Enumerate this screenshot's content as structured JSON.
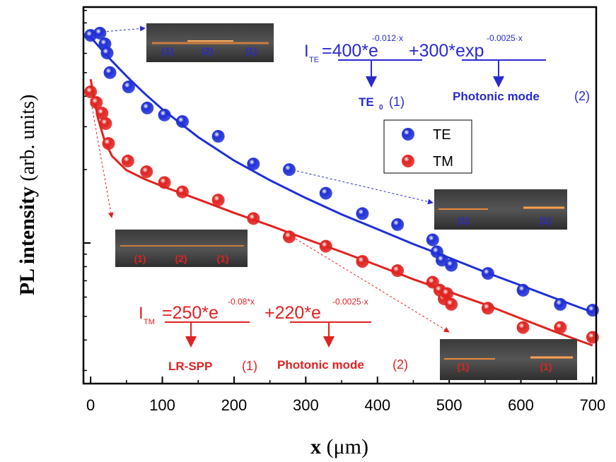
{
  "chart_data": {
    "type": "scatter",
    "xlabel": {
      "main": "x",
      "unit": "(μm)"
    },
    "ylabel": {
      "main": "PL intensity",
      "unit": "(arb. units)"
    },
    "xlim": [
      -10,
      705
    ],
    "xticks": [
      0,
      100,
      200,
      300,
      400,
      500,
      600,
      700
    ],
    "xminor_ticks": [
      50,
      150,
      250,
      350,
      450,
      550,
      650
    ],
    "yscale": "log",
    "ylim": [
      26.5,
      929
    ],
    "yticks": [
      100
    ],
    "yminor_ticks": [
      30,
      40,
      50,
      60,
      70,
      80,
      90,
      200,
      300,
      400,
      500,
      600,
      700,
      800,
      900
    ],
    "series": [
      {
        "name": "TE",
        "color": "#1f2fd6",
        "x": [
          0,
          13,
          20,
          23,
          27,
          53,
          79,
          103,
          128,
          178,
          227,
          277,
          328,
          379,
          428,
          477,
          483,
          490,
          503,
          554,
          603,
          655,
          700
        ],
        "values": [
          711,
          726,
          656,
          602,
          500,
          437,
          358,
          335,
          315,
          274,
          211,
          200,
          160,
          132,
          119,
          103,
          92,
          85,
          81,
          75,
          64,
          56,
          53
        ],
        "fit": {
          "x": [
            0,
            10,
            20,
            30,
            50,
            75,
            100,
            150,
            200,
            250,
            300,
            350,
            400,
            450,
            500,
            550,
            600,
            650,
            700
          ],
          "values": [
            700,
            647,
            600,
            557,
            484,
            411,
            354,
            272,
            218,
            181,
            153,
            131,
            114,
            99,
            87,
            76,
            67,
            59,
            52
          ]
        }
      },
      {
        "name": "TM",
        "color": "#e0231f",
        "x": [
          0,
          8,
          16,
          21,
          25,
          52,
          78,
          103,
          128,
          178,
          227,
          277,
          328,
          379,
          428,
          477,
          487,
          493,
          497,
          503,
          554,
          603,
          655,
          700
        ],
        "values": [
          417,
          377,
          341,
          309,
          256,
          217,
          196,
          177,
          162,
          150,
          126,
          106,
          97,
          84,
          77,
          69,
          64,
          59,
          62,
          56,
          54,
          45,
          45,
          41
        ],
        "fit": {
          "x": [
            0,
            10,
            20,
            30,
            50,
            75,
            100,
            150,
            200,
            250,
            300,
            350,
            400,
            450,
            500,
            550,
            600,
            650,
            700
          ],
          "values": [
            470,
            327,
            260,
            227,
            199,
            183,
            171,
            151,
            133,
            118,
            104,
            92,
            81,
            71,
            63,
            56,
            49,
            43,
            38
          ]
        }
      }
    ],
    "annotations": {
      "te": {
        "I": "I",
        "sub": "TE",
        "term1": "=400*e",
        "sup1": "-0.012·x",
        "term2": "+300*exp",
        "sup2": "-0.0025·x",
        "label1": "TE",
        "label1_sub": "0",
        "label1_ref": "(1)",
        "label2": "Photonic mode",
        "label2_ref": "(2)"
      },
      "tm": {
        "I": "I",
        "sub": "TM",
        "term1": "=250*e",
        "sup1": "-0.08*x",
        "term2": "+220*e",
        "sup2": "-0.0025·x",
        "label1": "LR-SPP",
        "label1_ref": "(1)",
        "label2": "Photonic mode",
        "label2_ref": "(2)"
      }
    },
    "insets": [
      {
        "labels": [
          "(1)",
          "(2)",
          "(1)"
        ]
      },
      {
        "labels": [
          "(1)",
          "(1)"
        ]
      },
      {
        "labels": [
          "(1)",
          "(2)",
          "(1)"
        ]
      },
      {
        "labels": [
          "(1)",
          "(1)"
        ]
      }
    ]
  }
}
